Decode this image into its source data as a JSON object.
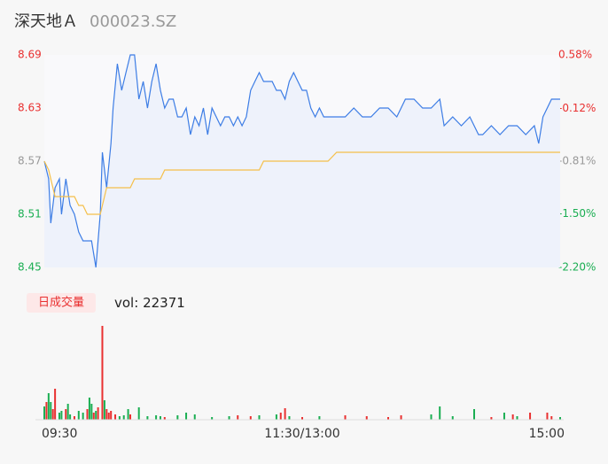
{
  "header": {
    "name": "深天地Ａ",
    "code": "000023.SZ"
  },
  "chart_data": {
    "type": "line",
    "x": [
      0,
      2,
      3,
      5,
      7,
      8,
      10,
      12,
      14,
      16,
      18,
      20,
      22,
      24,
      26,
      27,
      29,
      31,
      32,
      34,
      36,
      38,
      40,
      42,
      44,
      46,
      48,
      50,
      52,
      54,
      56,
      58,
      60,
      62,
      64,
      66,
      68,
      70,
      72,
      74,
      76,
      78,
      80,
      82,
      84,
      86,
      88,
      90,
      92,
      94,
      96,
      98,
      100,
      102,
      104,
      106,
      108,
      110,
      112,
      114,
      116,
      118,
      120,
      122,
      124,
      126,
      128,
      130,
      132,
      136,
      140,
      144,
      148,
      152,
      156,
      160,
      164,
      168,
      172,
      176,
      180,
      184,
      186,
      190,
      194,
      198,
      202,
      204,
      208,
      212,
      216,
      220,
      224,
      228,
      230,
      232,
      236,
      240
    ],
    "xlim": [
      0,
      240
    ],
    "xticks": [
      {
        "value": 0,
        "label": "09:30"
      },
      {
        "value": 120,
        "label": "11:30/13:00"
      },
      {
        "value": 240,
        "label": "15:00"
      }
    ],
    "ylim": [
      8.45,
      8.69
    ],
    "yticks": [
      8.45,
      8.51,
      8.57,
      8.63,
      8.69
    ],
    "ytick_colors": [
      "#1aae52",
      "#1aae52",
      "#999999",
      "#e93030",
      "#e93030"
    ],
    "y2lim": [
      -2.2,
      0.58
    ],
    "y2ticks": [
      {
        "value": -2.2,
        "label": "-2.20%"
      },
      {
        "value": -1.5,
        "label": "-1.50%"
      },
      {
        "value": -0.81,
        "label": "-0.81%"
      },
      {
        "value": -0.12,
        "label": "-0.12%"
      },
      {
        "value": 0.58,
        "label": "0.58%"
      }
    ],
    "y2tick_colors": [
      "#1aae52",
      "#1aae52",
      "#999999",
      "#e93030",
      "#e93030"
    ],
    "series": [
      {
        "color": "#3d7de5",
        "fill": "#eef2fb",
        "values": [
          8.57,
          8.55,
          8.5,
          8.54,
          8.55,
          8.51,
          8.55,
          8.52,
          8.51,
          8.49,
          8.48,
          8.48,
          8.48,
          8.45,
          8.51,
          8.58,
          8.54,
          8.59,
          8.63,
          8.68,
          8.65,
          8.67,
          8.69,
          8.69,
          8.64,
          8.66,
          8.63,
          8.66,
          8.68,
          8.65,
          8.63,
          8.64,
          8.64,
          8.62,
          8.62,
          8.63,
          8.6,
          8.62,
          8.61,
          8.63,
          8.6,
          8.63,
          8.62,
          8.61,
          8.62,
          8.62,
          8.61,
          8.62,
          8.61,
          8.62,
          8.65,
          8.66,
          8.67,
          8.66,
          8.66,
          8.66,
          8.65,
          8.65,
          8.64,
          8.66,
          8.67,
          8.66,
          8.65,
          8.65,
          8.63,
          8.62,
          8.63,
          8.62,
          8.62,
          8.62,
          8.62,
          8.63,
          8.62,
          8.62,
          8.63,
          8.63,
          8.62,
          8.64,
          8.64,
          8.63,
          8.63,
          8.64,
          8.61,
          8.62,
          8.61,
          8.62,
          8.6,
          8.6,
          8.61,
          8.6,
          8.61,
          8.61,
          8.6,
          8.61,
          8.59,
          8.62,
          8.64,
          8.64
        ]
      },
      {
        "color": "#f5c04a",
        "values": [
          8.57,
          8.56,
          8.55,
          8.53,
          8.53,
          8.53,
          8.53,
          8.53,
          8.53,
          8.52,
          8.52,
          8.51,
          8.51,
          8.51,
          8.51,
          8.52,
          8.54,
          8.54,
          8.54,
          8.54,
          8.54,
          8.54,
          8.54,
          8.55,
          8.55,
          8.55,
          8.55,
          8.55,
          8.55,
          8.55,
          8.56,
          8.56,
          8.56,
          8.56,
          8.56,
          8.56,
          8.56,
          8.56,
          8.56,
          8.56,
          8.56,
          8.56,
          8.56,
          8.56,
          8.56,
          8.56,
          8.56,
          8.56,
          8.56,
          8.56,
          8.56,
          8.56,
          8.56,
          8.57,
          8.57,
          8.57,
          8.57,
          8.57,
          8.57,
          8.57,
          8.57,
          8.57,
          8.57,
          8.57,
          8.57,
          8.57,
          8.57,
          8.57,
          8.57,
          8.58,
          8.58,
          8.58,
          8.58,
          8.58,
          8.58,
          8.58,
          8.58,
          8.58,
          8.58,
          8.58,
          8.58,
          8.58,
          8.58,
          8.58,
          8.58,
          8.58,
          8.58,
          8.58,
          8.58,
          8.58,
          8.58,
          8.58,
          8.58,
          8.58,
          8.58,
          8.58,
          8.58,
          8.58
        ]
      }
    ],
    "volume": {
      "type": "bar",
      "label": "日成交量",
      "readout_label": "vol:",
      "readout_value": 22371,
      "x": [
        0,
        1,
        2,
        3,
        4,
        5,
        7,
        8,
        10,
        11,
        12,
        14,
        16,
        18,
        20,
        21,
        22,
        23,
        24,
        25,
        27,
        28,
        29,
        30,
        31,
        33,
        35,
        37,
        39,
        40,
        44,
        48,
        52,
        54,
        56,
        62,
        66,
        70,
        78,
        86,
        90,
        96,
        100,
        108,
        110,
        112,
        114,
        120,
        128,
        140,
        150,
        160,
        166,
        180,
        184,
        190,
        200,
        208,
        214,
        218,
        220,
        226,
        234,
        236,
        240
      ],
      "values": [
        1500,
        2000,
        3000,
        2000,
        1200,
        3500,
        800,
        1000,
        1200,
        1800,
        600,
        400,
        1000,
        800,
        1200,
        2500,
        1800,
        800,
        1000,
        1400,
        10600,
        2200,
        1200,
        800,
        1000,
        600,
        400,
        500,
        1200,
        600,
        1400,
        400,
        500,
        400,
        300,
        500,
        800,
        600,
        300,
        400,
        500,
        400,
        500,
        600,
        800,
        1300,
        400,
        300,
        400,
        500,
        400,
        300,
        500,
        600,
        1500,
        400,
        1200,
        300,
        800,
        600,
        400,
        800,
        800,
        400,
        300
      ],
      "colors": [
        "#1aae52",
        "#e93030",
        "#1aae52",
        "#1aae52",
        "#e93030",
        "#e93030",
        "#1aae52",
        "#1aae52",
        "#e93030",
        "#1aae52",
        "#1aae52",
        "#e93030",
        "#1aae52",
        "#1aae52",
        "#e93030",
        "#1aae52",
        "#1aae52",
        "#e93030",
        "#1aae52",
        "#e93030",
        "#e93030",
        "#1aae52",
        "#e93030",
        "#e93030",
        "#e93030",
        "#e93030",
        "#1aae52",
        "#1aae52",
        "#1aae52",
        "#e93030",
        "#1aae52",
        "#1aae52",
        "#1aae52",
        "#1aae52",
        "#e93030",
        "#1aae52",
        "#1aae52",
        "#1aae52",
        "#1aae52",
        "#1aae52",
        "#e93030",
        "#e93030",
        "#1aae52",
        "#1aae52",
        "#e93030",
        "#e93030",
        "#1aae52",
        "#e93030",
        "#1aae52",
        "#e93030",
        "#e93030",
        "#e93030",
        "#e93030",
        "#1aae52",
        "#1aae52",
        "#1aae52",
        "#1aae52",
        "#e93030",
        "#1aae52",
        "#e93030",
        "#1aae52",
        "#e93030",
        "#e93030",
        "#e93030",
        "#1aae52"
      ]
    }
  }
}
